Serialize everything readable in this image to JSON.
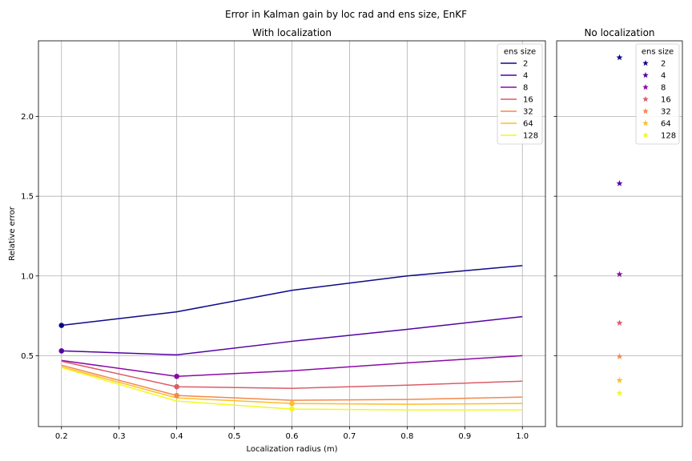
{
  "figure": {
    "suptitle": "Error in Kalman gain by loc rad and ens size, EnKF"
  },
  "colors": {
    "2": "#0d0887",
    "4": "#5302a3",
    "8": "#8b0aa5",
    "16": "#db5c68",
    "32": "#f48849",
    "64": "#febd2a",
    "128": "#f0f921",
    "grid": "#b0b0b0"
  },
  "chart_data": [
    {
      "type": "line",
      "title": "With localization",
      "xlabel": "Localization radius (m)",
      "ylabel": "Relative error",
      "xlim": [
        0.16,
        1.04
      ],
      "ylim": [
        0.055,
        2.475
      ],
      "xticks": [
        "0.2",
        "0.3",
        "0.4",
        "0.5",
        "0.6",
        "0.7",
        "0.8",
        "0.9",
        "1.0"
      ],
      "yticks": [
        "0.5",
        "1.0",
        "1.5",
        "2.0"
      ],
      "grid": true,
      "legend": {
        "title": "ens size",
        "placement": "top-right"
      },
      "x": [
        0.2,
        0.4,
        0.6,
        0.8,
        1.0
      ],
      "series": [
        {
          "name": "2",
          "color": "#0d0887",
          "values": [
            0.69,
            0.775,
            0.91,
            1.0,
            1.065
          ],
          "marker_index": 0
        },
        {
          "name": "4",
          "color": "#5302a3",
          "values": [
            0.53,
            0.505,
            0.59,
            0.665,
            0.745
          ],
          "marker_index": 0
        },
        {
          "name": "8",
          "color": "#8b0aa5",
          "values": [
            0.47,
            0.37,
            0.405,
            0.455,
            0.5
          ],
          "marker_index": 1
        },
        {
          "name": "16",
          "color": "#db5c68",
          "values": [
            0.465,
            0.305,
            0.295,
            0.315,
            0.34
          ],
          "marker_index": 1
        },
        {
          "name": "32",
          "color": "#f48849",
          "values": [
            0.44,
            0.25,
            0.22,
            0.225,
            0.24
          ],
          "marker_index": 1
        },
        {
          "name": "64",
          "color": "#febd2a",
          "values": [
            0.43,
            0.235,
            0.2,
            0.195,
            0.2
          ],
          "marker_index": 2
        },
        {
          "name": "128",
          "color": "#f0f921",
          "values": [
            0.425,
            0.215,
            0.165,
            0.16,
            0.16
          ],
          "marker_index": 2
        }
      ]
    },
    {
      "type": "scatter",
      "title": "No localization",
      "ylim": [
        0.055,
        2.475
      ],
      "grid": true,
      "marker": "star",
      "legend": {
        "title": "ens size",
        "placement": "top-right"
      },
      "series": [
        {
          "name": "2",
          "color": "#0d0887",
          "value": 2.37
        },
        {
          "name": "4",
          "color": "#5302a3",
          "value": 1.58
        },
        {
          "name": "8",
          "color": "#8b0aa5",
          "value": 1.01
        },
        {
          "name": "16",
          "color": "#db5c68",
          "value": 0.705
        },
        {
          "name": "32",
          "color": "#f48849",
          "value": 0.495
        },
        {
          "name": "64",
          "color": "#febd2a",
          "value": 0.345
        },
        {
          "name": "128",
          "color": "#f0f921",
          "value": 0.265
        }
      ]
    }
  ]
}
